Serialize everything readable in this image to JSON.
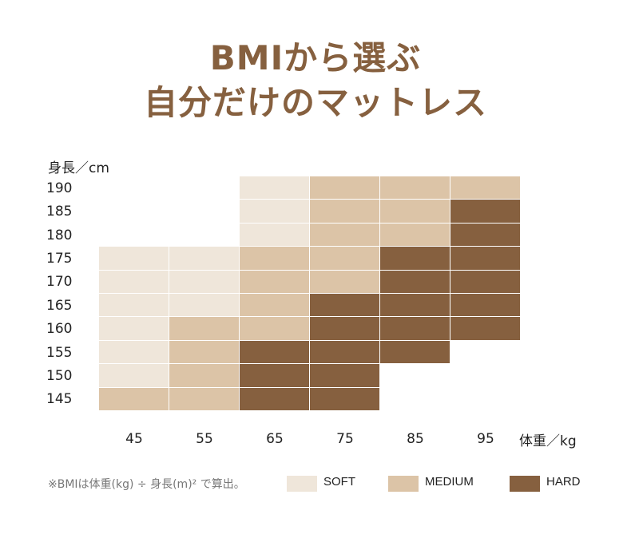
{
  "title": {
    "line1": "BMIから選ぶ",
    "line2": "自分だけのマットレス"
  },
  "note": "※BMIは体重(kg) ÷ 身長(m)² で算出。",
  "colors": {
    "SOFT": "#efe6da",
    "MEDIUM": "#dcc4a7",
    "HARD": "#86603f"
  },
  "chart_data": {
    "type": "heatmap",
    "title": "BMIから選ぶ 自分だけのマットレス",
    "xlabel": "体重／kg",
    "ylabel": "身長／cm",
    "x": [
      "45",
      "55",
      "65",
      "75",
      "85",
      "95"
    ],
    "y": [
      "190",
      "185",
      "180",
      "175",
      "170",
      "165",
      "160",
      "155",
      "150",
      "145"
    ],
    "legend": [
      "SOFT",
      "MEDIUM",
      "HARD"
    ],
    "legend_position": "bottom",
    "rows": [
      {
        "height": "190",
        "values": [
          "",
          "",
          "SOFT",
          "MEDIUM",
          "MEDIUM",
          "MEDIUM"
        ]
      },
      {
        "height": "185",
        "values": [
          "",
          "",
          "SOFT",
          "MEDIUM",
          "MEDIUM",
          "HARD"
        ]
      },
      {
        "height": "180",
        "values": [
          "",
          "",
          "SOFT",
          "MEDIUM",
          "MEDIUM",
          "HARD"
        ]
      },
      {
        "height": "175",
        "values": [
          "SOFT",
          "SOFT",
          "MEDIUM",
          "MEDIUM",
          "HARD",
          "HARD"
        ]
      },
      {
        "height": "170",
        "values": [
          "SOFT",
          "SOFT",
          "MEDIUM",
          "MEDIUM",
          "HARD",
          "HARD"
        ]
      },
      {
        "height": "165",
        "values": [
          "SOFT",
          "SOFT",
          "MEDIUM",
          "HARD",
          "HARD",
          "HARD"
        ]
      },
      {
        "height": "160",
        "values": [
          "SOFT",
          "MEDIUM",
          "MEDIUM",
          "HARD",
          "HARD",
          "HARD"
        ]
      },
      {
        "height": "155",
        "values": [
          "SOFT",
          "MEDIUM",
          "HARD",
          "HARD",
          "HARD",
          ""
        ]
      },
      {
        "height": "150",
        "values": [
          "SOFT",
          "MEDIUM",
          "HARD",
          "HARD",
          "",
          ""
        ]
      },
      {
        "height": "145",
        "values": [
          "MEDIUM",
          "MEDIUM",
          "HARD",
          "HARD",
          "",
          ""
        ]
      }
    ]
  }
}
